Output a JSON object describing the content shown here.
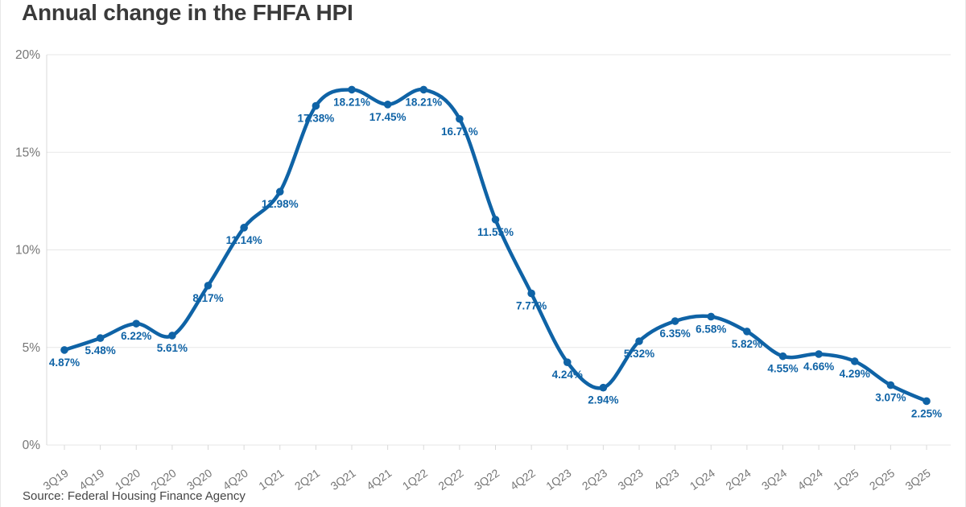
{
  "page": {
    "title": "Annual change in the FHFA HPI",
    "source": "Source: Federal Housing Finance Agency"
  },
  "colors": {
    "line": "#0f63a6",
    "marker": "#0f63a6",
    "point_label": "#0f63a6",
    "axis_text": "#767676",
    "grid": "#e7e7e7",
    "axis_line": "#d8d8d8",
    "tick": "#d8d8d8",
    "title_text": "#3a3a3a",
    "source_text": "#454545",
    "background": "#ffffff"
  },
  "chart_data": {
    "type": "line",
    "title": "Annual change in the FHFA HPI",
    "categories": [
      "3Q19",
      "4Q19",
      "1Q20",
      "2Q20",
      "3Q20",
      "4Q20",
      "1Q21",
      "2Q21",
      "3Q21",
      "4Q21",
      "1Q22",
      "2Q22",
      "3Q22",
      "4Q22",
      "1Q23",
      "2Q23",
      "3Q23",
      "4Q23",
      "1Q24",
      "2Q24",
      "3Q24",
      "4Q24",
      "1Q25",
      "2Q25",
      "3Q25"
    ],
    "values": [
      4.87,
      5.48,
      6.22,
      5.61,
      8.17,
      11.14,
      12.98,
      17.38,
      18.21,
      17.45,
      18.21,
      16.71,
      11.55,
      7.77,
      4.24,
      2.94,
      5.32,
      6.35,
      6.58,
      5.82,
      4.55,
      4.66,
      4.29,
      3.07,
      2.25
    ],
    "point_labels": [
      "4.87%",
      "5.48%",
      "6.22%",
      "5.61%",
      "8.17%",
      "11.14%",
      "12.98%",
      "17.38%",
      "18.21%",
      "17.45%",
      "18.21%",
      "16.71%",
      "11.55%",
      "7.77%",
      "4.24%",
      "2.94%",
      "5.32%",
      "6.35%",
      "6.58%",
      "5.82%",
      "4.55%",
      "4.66%",
      "4.29%",
      "3.07%",
      "2.25%"
    ],
    "xlabel": "",
    "ylabel": "",
    "ylim": [
      0,
      20
    ],
    "yticks": [
      0,
      5,
      10,
      15,
      20
    ],
    "ytick_labels": [
      "0%",
      "5%",
      "10%",
      "15%",
      "20%"
    ],
    "grid": "horizontal",
    "legend": "none",
    "marker": "circle",
    "smooth": true,
    "source": "Source: Federal Housing Finance Agency"
  }
}
